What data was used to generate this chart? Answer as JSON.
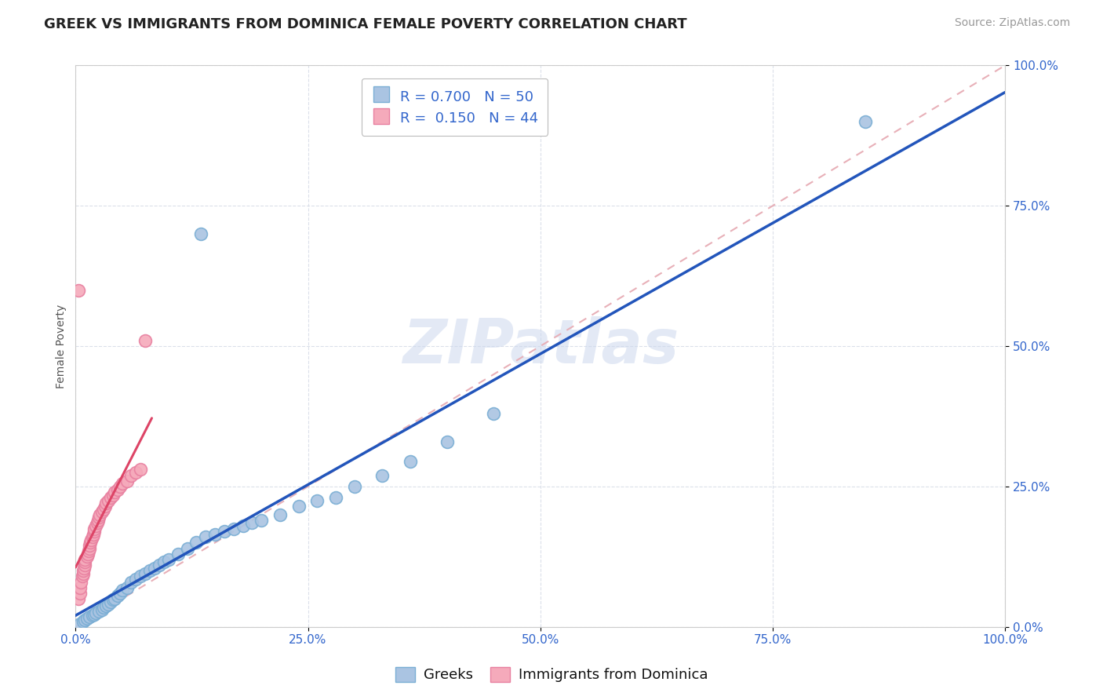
{
  "title": "GREEK VS IMMIGRANTS FROM DOMINICA FEMALE POVERTY CORRELATION CHART",
  "source_text": "Source: ZipAtlas.com",
  "ylabel": "Female Poverty",
  "xlim": [
    0,
    1
  ],
  "ylim": [
    0,
    1
  ],
  "xticks": [
    0,
    0.25,
    0.5,
    0.75,
    1.0
  ],
  "yticks": [
    0,
    0.25,
    0.5,
    0.75,
    1.0
  ],
  "xticklabels": [
    "0.0%",
    "25.0%",
    "50.0%",
    "75.0%",
    "100.0%"
  ],
  "yticklabels": [
    "0.0%",
    "25.0%",
    "50.0%",
    "75.0%",
    "100.0%"
  ],
  "greek_color": "#aac4e2",
  "dominica_color": "#f5aabb",
  "greek_edge_color": "#7aaed4",
  "dominica_edge_color": "#e880a0",
  "blue_line_color": "#2255bb",
  "pink_line_color": "#dd4466",
  "diag_line_color": "#e8b0b8",
  "grid_color": "#d8dde8",
  "watermark_color": "#ccd8ee",
  "legend_label1": "Greeks",
  "legend_label2": "Immigrants from Dominica",
  "title_fontsize": 13,
  "axis_label_fontsize": 10,
  "tick_fontsize": 11,
  "legend_fontsize": 13,
  "source_fontsize": 10,
  "greek_x": [
    0.005,
    0.008,
    0.01,
    0.012,
    0.015,
    0.018,
    0.02,
    0.022,
    0.025,
    0.028,
    0.03,
    0.033,
    0.035,
    0.038,
    0.04,
    0.042,
    0.045,
    0.048,
    0.05,
    0.055,
    0.06,
    0.065,
    0.07,
    0.075,
    0.08,
    0.085,
    0.09,
    0.095,
    0.1,
    0.11,
    0.12,
    0.13,
    0.14,
    0.15,
    0.16,
    0.17,
    0.18,
    0.19,
    0.2,
    0.22,
    0.24,
    0.26,
    0.28,
    0.3,
    0.33,
    0.36,
    0.4,
    0.45,
    0.85,
    0.135
  ],
  "greek_y": [
    0.005,
    0.01,
    0.012,
    0.015,
    0.018,
    0.02,
    0.022,
    0.025,
    0.028,
    0.03,
    0.035,
    0.038,
    0.04,
    0.045,
    0.048,
    0.05,
    0.055,
    0.06,
    0.065,
    0.07,
    0.08,
    0.085,
    0.09,
    0.095,
    0.1,
    0.105,
    0.11,
    0.115,
    0.12,
    0.13,
    0.14,
    0.15,
    0.16,
    0.165,
    0.17,
    0.175,
    0.18,
    0.185,
    0.19,
    0.2,
    0.215,
    0.225,
    0.23,
    0.25,
    0.27,
    0.295,
    0.33,
    0.38,
    0.9,
    0.7
  ],
  "dominica_x": [
    0.003,
    0.005,
    0.005,
    0.006,
    0.007,
    0.008,
    0.008,
    0.009,
    0.01,
    0.01,
    0.01,
    0.012,
    0.013,
    0.014,
    0.015,
    0.015,
    0.016,
    0.017,
    0.018,
    0.019,
    0.02,
    0.02,
    0.022,
    0.023,
    0.024,
    0.025,
    0.026,
    0.028,
    0.03,
    0.032,
    0.033,
    0.035,
    0.038,
    0.04,
    0.042,
    0.045,
    0.048,
    0.05,
    0.055,
    0.06,
    0.065,
    0.07,
    0.003,
    0.075
  ],
  "dominica_y": [
    0.05,
    0.06,
    0.07,
    0.08,
    0.09,
    0.095,
    0.1,
    0.105,
    0.11,
    0.115,
    0.12,
    0.125,
    0.13,
    0.135,
    0.14,
    0.145,
    0.15,
    0.155,
    0.16,
    0.165,
    0.17,
    0.175,
    0.18,
    0.185,
    0.19,
    0.195,
    0.2,
    0.205,
    0.21,
    0.215,
    0.22,
    0.225,
    0.23,
    0.235,
    0.24,
    0.245,
    0.25,
    0.255,
    0.26,
    0.27,
    0.275,
    0.28,
    0.6,
    0.51
  ]
}
